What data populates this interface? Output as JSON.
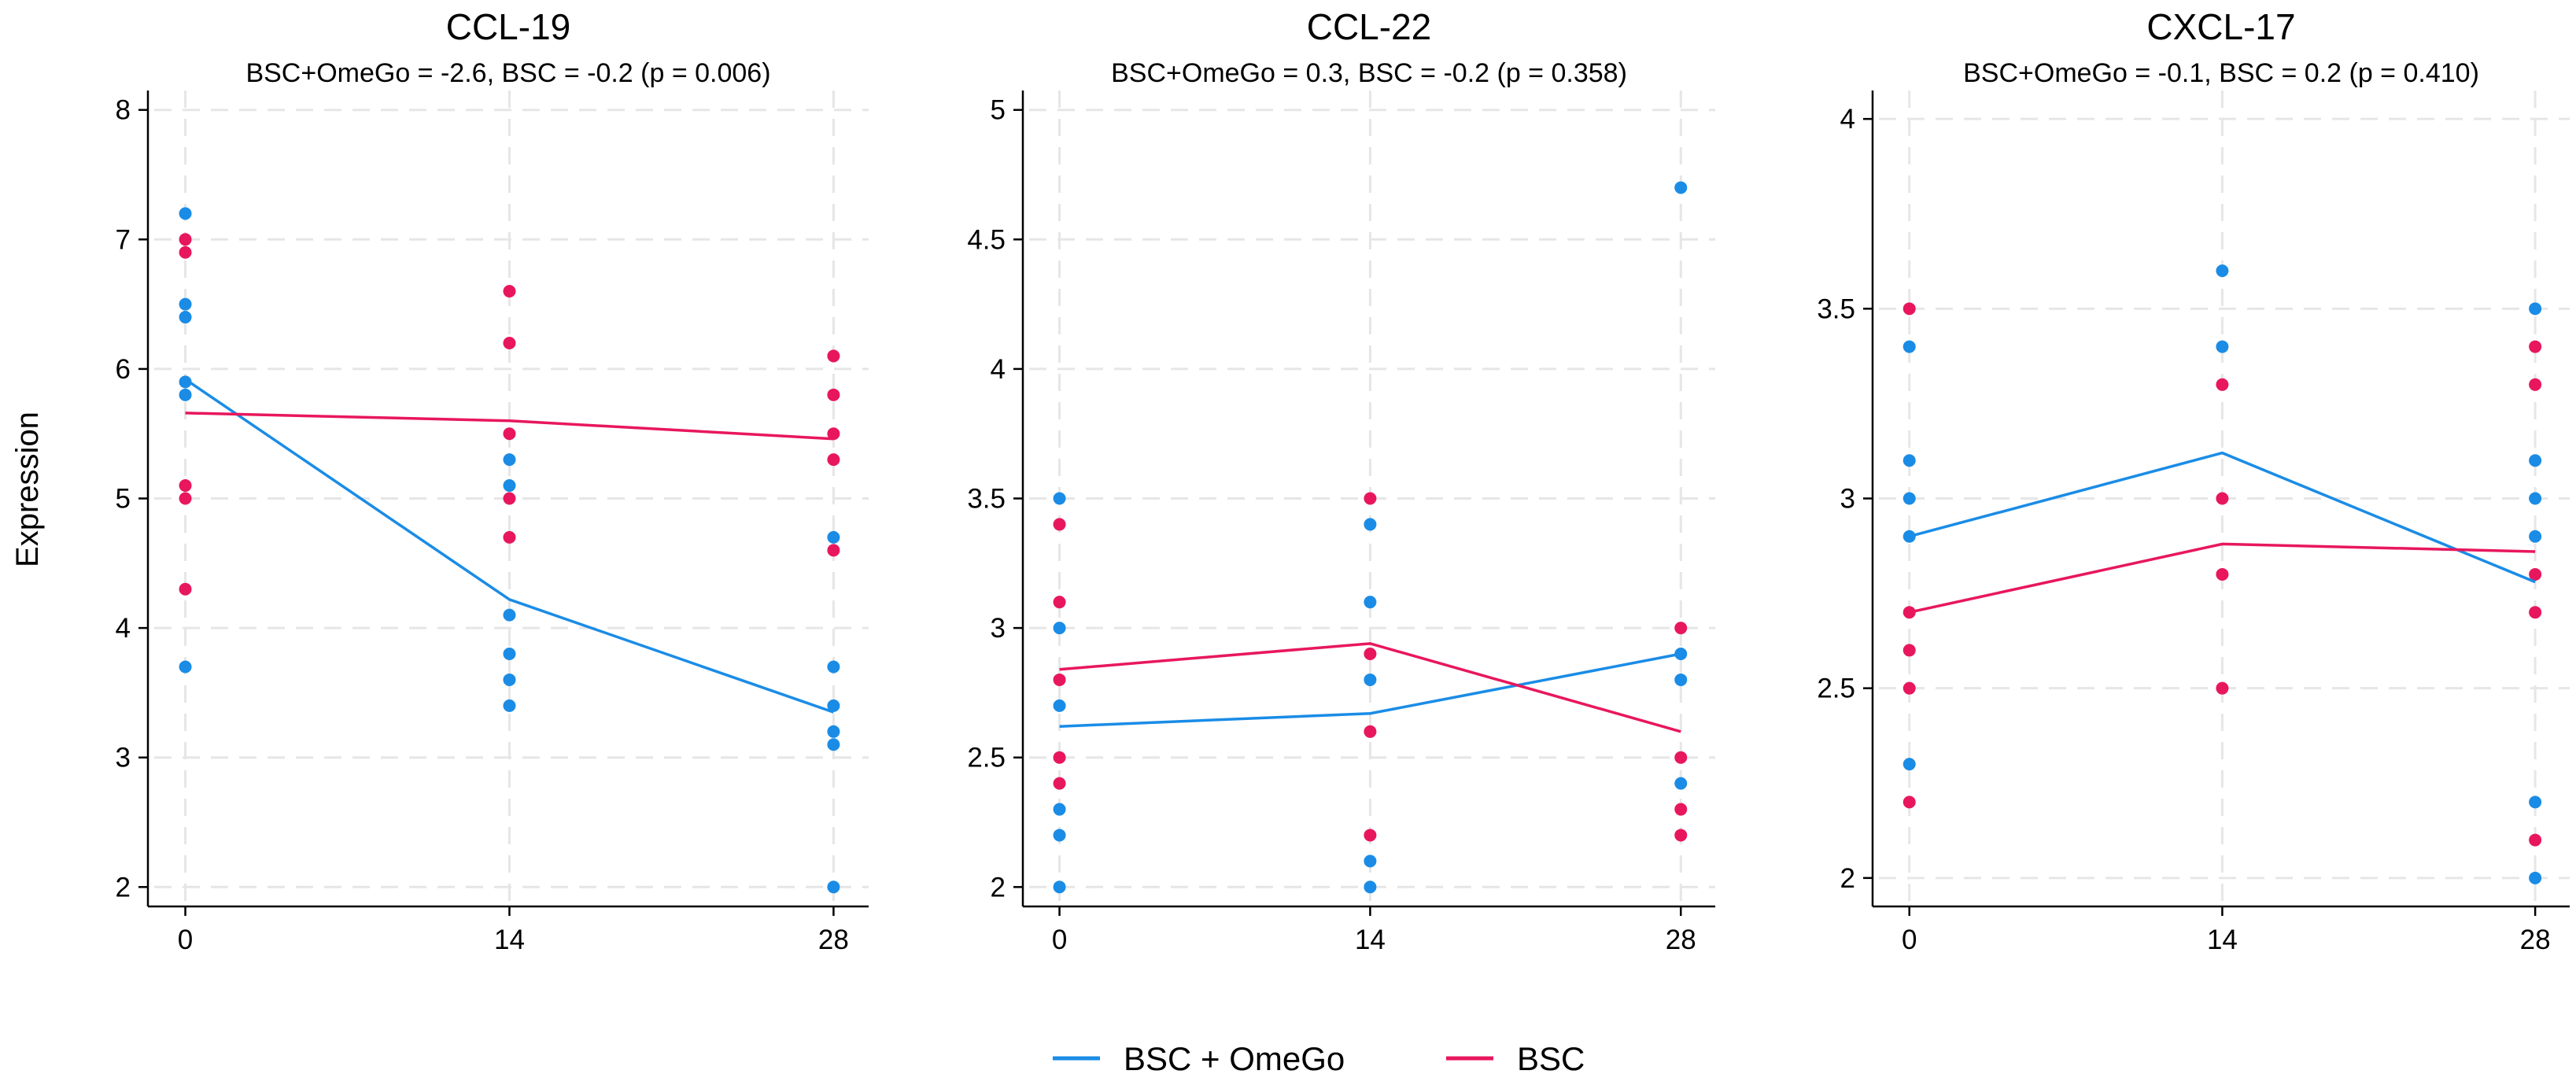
{
  "legend": [
    {
      "name": "BSC + OmeGo",
      "color": "#1a8ce6"
    },
    {
      "name": "BSC",
      "color": "#e8175d"
    }
  ],
  "y_axis_title": "Expression",
  "chart_data": [
    {
      "type": "scatter",
      "title": "CCL-19",
      "subtitle": "BSC+OmeGo = -2.6,  BSC = -0.2 (p = 0.006)",
      "xlabel": "",
      "ylabel": "Expression",
      "x_ticks": [
        0,
        14,
        28
      ],
      "y_ticks": [
        "2",
        "3",
        "4",
        "5",
        "6",
        "7",
        "8"
      ],
      "xlim": [
        -0.8,
        28.7
      ],
      "ylim": [
        1.85,
        8.15
      ],
      "grid": true,
      "series": [
        {
          "name": "BSC + OmeGo",
          "color": "#1a8ce6",
          "points": [
            [
              0,
              7.2
            ],
            [
              0,
              6.5
            ],
            [
              0,
              6.4
            ],
            [
              0,
              5.9
            ],
            [
              0,
              5.8
            ],
            [
              0,
              3.7
            ],
            [
              14,
              5.3
            ],
            [
              14,
              5.1
            ],
            [
              14,
              4.1
            ],
            [
              14,
              3.8
            ],
            [
              14,
              3.6
            ],
            [
              14,
              3.4
            ],
            [
              28,
              4.7
            ],
            [
              28,
              3.7
            ],
            [
              28,
              3.4
            ],
            [
              28,
              3.2
            ],
            [
              28,
              3.1
            ],
            [
              28,
              2.0
            ]
          ],
          "line": [
            [
              0,
              5.92
            ],
            [
              14,
              4.22
            ],
            [
              28,
              3.35
            ]
          ]
        },
        {
          "name": "BSC",
          "color": "#e8175d",
          "points": [
            [
              0,
              7.0
            ],
            [
              0,
              6.9
            ],
            [
              0,
              5.1
            ],
            [
              0,
              5.0
            ],
            [
              0,
              4.3
            ],
            [
              14,
              6.6
            ],
            [
              14,
              6.2
            ],
            [
              14,
              5.5
            ],
            [
              14,
              5.0
            ],
            [
              14,
              4.7
            ],
            [
              28,
              6.1
            ],
            [
              28,
              5.8
            ],
            [
              28,
              5.5
            ],
            [
              28,
              5.3
            ],
            [
              28,
              4.6
            ]
          ],
          "line": [
            [
              0,
              5.66
            ],
            [
              14,
              5.6
            ],
            [
              28,
              5.46
            ]
          ]
        }
      ]
    },
    {
      "type": "scatter",
      "title": "CCL-22",
      "subtitle": "BSC+OmeGo = 0.3,  BSC = -0.2 (p = 0.358)",
      "xlabel": "",
      "ylabel": "",
      "x_ticks": [
        0,
        14,
        28
      ],
      "y_ticks": [
        "2",
        "2.5",
        "3",
        "3.5",
        "4",
        "4.5",
        "5"
      ],
      "xlim": [
        -0.8,
        28.7
      ],
      "ylim": [
        1.925,
        5.075
      ],
      "grid": true,
      "series": [
        {
          "name": "BSC + OmeGo",
          "color": "#1a8ce6",
          "points": [
            [
              0,
              3.5
            ],
            [
              0,
              3.0
            ],
            [
              0,
              2.7
            ],
            [
              0,
              2.3
            ],
            [
              0,
              2.2
            ],
            [
              0,
              2.0
            ],
            [
              14,
              3.4
            ],
            [
              14,
              3.1
            ],
            [
              14,
              2.8
            ],
            [
              14,
              2.1
            ],
            [
              14,
              2.0
            ],
            [
              28,
              4.7
            ],
            [
              28,
              2.9
            ],
            [
              28,
              2.8
            ],
            [
              28,
              2.4
            ]
          ],
          "line": [
            [
              0,
              2.62
            ],
            [
              14,
              2.67
            ],
            [
              28,
              2.9
            ]
          ]
        },
        {
          "name": "BSC",
          "color": "#e8175d",
          "points": [
            [
              0,
              3.4
            ],
            [
              0,
              3.1
            ],
            [
              0,
              2.8
            ],
            [
              0,
              2.5
            ],
            [
              0,
              2.4
            ],
            [
              14,
              3.5
            ],
            [
              14,
              2.9
            ],
            [
              14,
              2.6
            ],
            [
              14,
              2.2
            ],
            [
              28,
              3.0
            ],
            [
              28,
              2.5
            ],
            [
              28,
              2.3
            ],
            [
              28,
              2.2
            ]
          ],
          "line": [
            [
              0,
              2.84
            ],
            [
              14,
              2.94
            ],
            [
              28,
              2.6
            ]
          ]
        }
      ]
    },
    {
      "type": "scatter",
      "title": "CXCL-17",
      "subtitle": "BSC+OmeGo = -0.1,  BSC = 0.2 (p = 0.410)",
      "xlabel": "",
      "ylabel": "",
      "x_ticks": [
        0,
        14,
        28
      ],
      "y_ticks": [
        "2",
        "2.5",
        "3",
        "3.5",
        "4"
      ],
      "xlim": [
        -0.8,
        28.7
      ],
      "ylim": [
        1.925,
        4.075
      ],
      "grid": true,
      "series": [
        {
          "name": "BSC + OmeGo",
          "color": "#1a8ce6",
          "points": [
            [
              0,
              3.4
            ],
            [
              0,
              3.1
            ],
            [
              0,
              3.0
            ],
            [
              0,
              2.9
            ],
            [
              0,
              2.3
            ],
            [
              14,
              3.6
            ],
            [
              14,
              3.4
            ],
            [
              28,
              3.5
            ],
            [
              28,
              3.1
            ],
            [
              28,
              3.0
            ],
            [
              28,
              2.9
            ],
            [
              28,
              2.2
            ],
            [
              28,
              2.0
            ]
          ],
          "line": [
            [
              0,
              2.9
            ],
            [
              14,
              3.12
            ],
            [
              28,
              2.78
            ]
          ]
        },
        {
          "name": "BSC",
          "color": "#e8175d",
          "points": [
            [
              0,
              3.5
            ],
            [
              0,
              2.7
            ],
            [
              0,
              2.6
            ],
            [
              0,
              2.5
            ],
            [
              0,
              2.2
            ],
            [
              14,
              3.3
            ],
            [
              14,
              3.0
            ],
            [
              14,
              2.8
            ],
            [
              14,
              2.5
            ],
            [
              28,
              3.4
            ],
            [
              28,
              3.3
            ],
            [
              28,
              2.8
            ],
            [
              28,
              2.7
            ],
            [
              28,
              2.1
            ]
          ],
          "line": [
            [
              0,
              2.7
            ],
            [
              14,
              2.88
            ],
            [
              28,
              2.86
            ]
          ]
        }
      ]
    }
  ]
}
